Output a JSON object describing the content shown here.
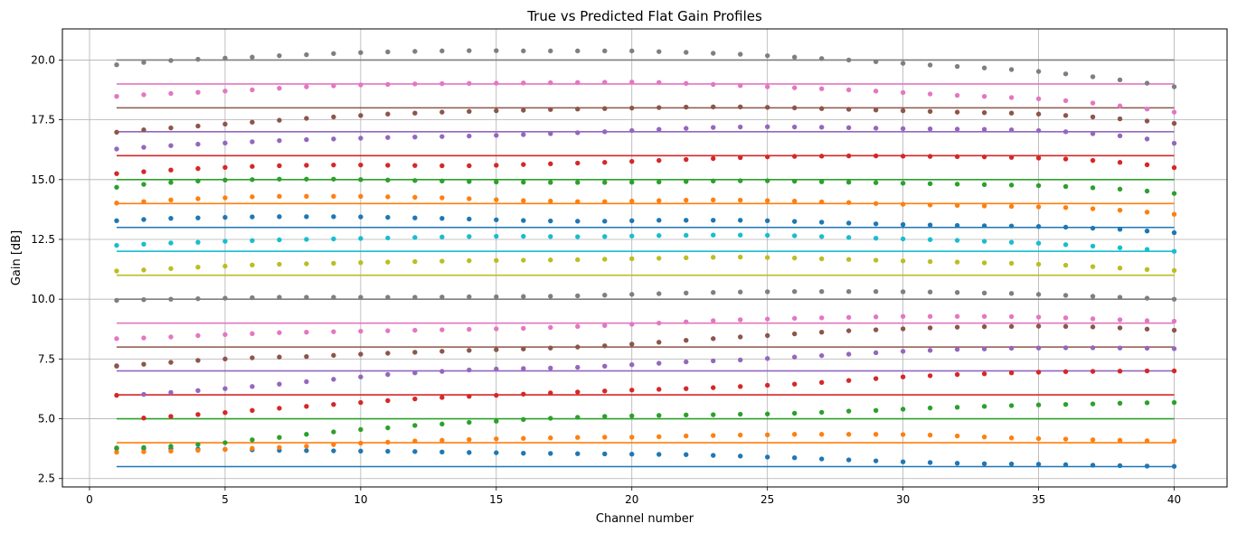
{
  "chart_data": {
    "type": "line",
    "title": "True vs Predicted Flat Gain Profiles",
    "xlabel": "Channel number",
    "ylabel": "Gain [dB]",
    "xlim": [
      -1,
      41.95
    ],
    "ylim": [
      2.15,
      21.3
    ],
    "grid": true,
    "xticks": [
      0,
      5,
      10,
      15,
      20,
      25,
      30,
      35,
      40
    ],
    "xtick_labels": [
      "0",
      "5",
      "10",
      "15",
      "20",
      "25",
      "30",
      "35",
      "40"
    ],
    "yticks": [
      2.5,
      5.0,
      7.5,
      10.0,
      12.5,
      15.0,
      17.5,
      20.0
    ],
    "ytick_labels": [
      "2.5",
      "5.0",
      "7.5",
      "10.0",
      "12.5",
      "15.0",
      "17.5",
      "20.0"
    ],
    "x_range": [
      1,
      40
    ],
    "channels": [
      1,
      2,
      3,
      4,
      5,
      6,
      7,
      8,
      9,
      10,
      11,
      12,
      13,
      14,
      15,
      16,
      17,
      18,
      19,
      20,
      21,
      22,
      23,
      24,
      25,
      26,
      27,
      28,
      29,
      30,
      31,
      32,
      33,
      34,
      35,
      36,
      37,
      38,
      39,
      40
    ],
    "lines": [
      {
        "y": 3,
        "color": "#1f77b4"
      },
      {
        "y": 4,
        "color": "#ff7f0e"
      },
      {
        "y": 5,
        "color": "#2ca02c"
      },
      {
        "y": 6,
        "color": "#d62728"
      },
      {
        "y": 7,
        "color": "#9467bd"
      },
      {
        "y": 8,
        "color": "#8c564b"
      },
      {
        "y": 9,
        "color": "#e377c2"
      },
      {
        "y": 10,
        "color": "#7f7f7f"
      },
      {
        "y": 11,
        "color": "#bcbd22"
      },
      {
        "y": 12,
        "color": "#17becf"
      },
      {
        "y": 13,
        "color": "#1f77b4"
      },
      {
        "y": 14,
        "color": "#ff7f0e"
      },
      {
        "y": 15,
        "color": "#2ca02c"
      },
      {
        "y": 16,
        "color": "#d62728"
      },
      {
        "y": 17,
        "color": "#9467bd"
      },
      {
        "y": 18,
        "color": "#8c564b"
      },
      {
        "y": 19,
        "color": "#e377c2"
      },
      {
        "y": 20,
        "color": "#7f7f7f"
      }
    ],
    "series": [
      {
        "color": "#1f77b4",
        "values": [
          3.75,
          3.75,
          3.75,
          3.73,
          3.72,
          3.7,
          3.68,
          3.67,
          3.66,
          3.65,
          3.64,
          3.63,
          3.61,
          3.59,
          3.58,
          3.56,
          3.55,
          3.54,
          3.53,
          3.52,
          3.51,
          3.5,
          3.47,
          3.44,
          3.4,
          3.37,
          3.32,
          3.28,
          3.24,
          3.2,
          3.17,
          3.14,
          3.12,
          3.11,
          3.1,
          3.08,
          3.06,
          3.04,
          3.02,
          3.01
        ]
      },
      {
        "color": "#ff7f0e",
        "values": [
          3.6,
          3.62,
          3.65,
          3.68,
          3.72,
          3.76,
          3.8,
          3.85,
          3.92,
          3.98,
          4.02,
          4.07,
          4.1,
          4.13,
          4.16,
          4.18,
          4.2,
          4.22,
          4.23,
          4.23,
          4.25,
          4.28,
          4.3,
          4.32,
          4.33,
          4.35,
          4.35,
          4.35,
          4.35,
          4.34,
          4.32,
          4.28,
          4.24,
          4.2,
          4.17,
          4.15,
          4.12,
          4.1,
          4.08,
          4.07
        ]
      },
      {
        "color": "#2ca02c",
        "values": [
          3.78,
          3.8,
          3.85,
          3.92,
          4.0,
          4.12,
          4.22,
          4.35,
          4.45,
          4.55,
          4.62,
          4.72,
          4.78,
          4.85,
          4.9,
          4.97,
          5.02,
          5.06,
          5.1,
          5.12,
          5.14,
          5.16,
          5.17,
          5.19,
          5.2,
          5.23,
          5.27,
          5.32,
          5.35,
          5.4,
          5.45,
          5.48,
          5.52,
          5.55,
          5.58,
          5.6,
          5.62,
          5.65,
          5.67,
          5.68
        ]
      },
      {
        "color": "#d62728",
        "values": [
          5.98,
          5.03,
          5.1,
          5.18,
          5.26,
          5.35,
          5.44,
          5.52,
          5.6,
          5.68,
          5.76,
          5.83,
          5.89,
          5.94,
          5.98,
          6.03,
          6.08,
          6.12,
          6.16,
          6.2,
          6.23,
          6.26,
          6.3,
          6.35,
          6.4,
          6.45,
          6.52,
          6.6,
          6.68,
          6.75,
          6.8,
          6.85,
          6.88,
          6.92,
          6.95,
          6.97,
          6.98,
          6.99,
          7.0,
          7.0
        ]
      },
      {
        "color": "#9467bd",
        "values": [
          7.22,
          6.02,
          6.1,
          6.18,
          6.26,
          6.35,
          6.45,
          6.55,
          6.65,
          6.75,
          6.85,
          6.92,
          6.98,
          7.04,
          7.08,
          7.1,
          7.12,
          7.15,
          7.2,
          7.26,
          7.32,
          7.38,
          7.42,
          7.46,
          7.52,
          7.58,
          7.64,
          7.7,
          7.76,
          7.82,
          7.86,
          7.9,
          7.92,
          7.95,
          7.96,
          7.97,
          7.97,
          7.96,
          7.95,
          7.93
        ]
      },
      {
        "color": "#8c564b",
        "values": [
          7.2,
          7.28,
          7.36,
          7.44,
          7.5,
          7.55,
          7.58,
          7.6,
          7.65,
          7.7,
          7.74,
          7.78,
          7.82,
          7.86,
          7.89,
          7.92,
          7.96,
          8.0,
          8.05,
          8.12,
          8.2,
          8.28,
          8.35,
          8.42,
          8.48,
          8.55,
          8.62,
          8.68,
          8.72,
          8.76,
          8.8,
          8.83,
          8.85,
          8.86,
          8.87,
          8.86,
          8.84,
          8.8,
          8.75,
          8.7
        ]
      },
      {
        "color": "#e377c2",
        "values": [
          8.35,
          8.38,
          8.42,
          8.48,
          8.52,
          8.56,
          8.6,
          8.62,
          8.64,
          8.66,
          8.68,
          8.7,
          8.72,
          8.74,
          8.76,
          8.78,
          8.82,
          8.86,
          8.9,
          8.95,
          9.0,
          9.05,
          9.1,
          9.14,
          9.17,
          9.2,
          9.22,
          9.24,
          9.26,
          9.28,
          9.28,
          9.28,
          9.28,
          9.27,
          9.25,
          9.22,
          9.18,
          9.14,
          9.1,
          9.08
        ]
      },
      {
        "color": "#7f7f7f",
        "values": [
          9.95,
          9.98,
          10.0,
          10.02,
          10.04,
          10.06,
          10.08,
          10.08,
          10.08,
          10.08,
          10.08,
          10.08,
          10.09,
          10.1,
          10.1,
          10.11,
          10.12,
          10.14,
          10.17,
          10.2,
          10.23,
          10.26,
          10.28,
          10.3,
          10.31,
          10.32,
          10.32,
          10.32,
          10.32,
          10.31,
          10.3,
          10.28,
          10.26,
          10.24,
          10.2,
          10.16,
          10.12,
          10.08,
          10.04,
          10.0
        ]
      },
      {
        "color": "#bcbd22",
        "values": [
          11.18,
          11.22,
          11.28,
          11.34,
          11.38,
          11.43,
          11.46,
          11.48,
          11.5,
          11.53,
          11.55,
          11.57,
          11.59,
          11.61,
          11.62,
          11.63,
          11.64,
          11.65,
          11.67,
          11.69,
          11.71,
          11.73,
          11.75,
          11.76,
          11.74,
          11.72,
          11.69,
          11.66,
          11.63,
          11.6,
          11.57,
          11.55,
          11.52,
          11.5,
          11.46,
          11.42,
          11.36,
          11.3,
          11.24,
          11.2
        ]
      },
      {
        "color": "#17becf",
        "values": [
          12.25,
          12.3,
          12.35,
          12.38,
          12.42,
          12.45,
          12.48,
          12.5,
          12.52,
          12.54,
          12.56,
          12.58,
          12.6,
          12.62,
          12.63,
          12.63,
          12.62,
          12.61,
          12.62,
          12.64,
          12.66,
          12.67,
          12.68,
          12.68,
          12.67,
          12.65,
          12.62,
          12.58,
          12.55,
          12.52,
          12.49,
          12.46,
          12.42,
          12.38,
          12.34,
          12.28,
          12.22,
          12.15,
          12.08,
          12.0
        ]
      },
      {
        "color": "#1f77b4",
        "values": [
          13.28,
          13.33,
          13.38,
          13.4,
          13.42,
          13.44,
          13.45,
          13.45,
          13.45,
          13.44,
          13.42,
          13.4,
          13.38,
          13.35,
          13.32,
          13.29,
          13.27,
          13.26,
          13.26,
          13.28,
          13.3,
          13.3,
          13.3,
          13.3,
          13.28,
          13.25,
          13.22,
          13.18,
          13.15,
          13.12,
          13.1,
          13.08,
          13.07,
          13.06,
          13.04,
          13.01,
          12.97,
          12.92,
          12.85,
          12.78
        ]
      },
      {
        "color": "#ff7f0e",
        "values": [
          14.02,
          14.08,
          14.15,
          14.2,
          14.24,
          14.28,
          14.3,
          14.3,
          14.3,
          14.3,
          14.28,
          14.26,
          14.24,
          14.2,
          14.16,
          14.12,
          14.1,
          14.08,
          14.08,
          14.1,
          14.12,
          14.14,
          14.15,
          14.14,
          14.12,
          14.1,
          14.07,
          14.04,
          14.0,
          13.97,
          13.94,
          13.92,
          13.9,
          13.88,
          13.86,
          13.83,
          13.78,
          13.72,
          13.64,
          13.55
        ]
      },
      {
        "color": "#2ca02c",
        "values": [
          14.68,
          14.8,
          14.88,
          14.94,
          14.98,
          15.0,
          15.02,
          15.02,
          15.02,
          15.0,
          14.98,
          14.96,
          14.94,
          14.92,
          14.9,
          14.89,
          14.88,
          14.88,
          14.88,
          14.89,
          14.9,
          14.92,
          14.94,
          14.95,
          14.95,
          14.93,
          14.91,
          14.89,
          14.87,
          14.85,
          14.83,
          14.81,
          14.79,
          14.77,
          14.75,
          14.71,
          14.66,
          14.6,
          14.52,
          14.42
        ]
      },
      {
        "color": "#d62728",
        "values": [
          15.25,
          15.33,
          15.4,
          15.46,
          15.51,
          15.55,
          15.58,
          15.6,
          15.61,
          15.61,
          15.6,
          15.59,
          15.58,
          15.58,
          15.6,
          15.63,
          15.66,
          15.69,
          15.72,
          15.76,
          15.8,
          15.84,
          15.88,
          15.92,
          15.95,
          15.97,
          15.98,
          15.99,
          15.99,
          15.98,
          15.97,
          15.96,
          15.95,
          15.93,
          15.9,
          15.86,
          15.8,
          15.72,
          15.62,
          15.5
        ]
      },
      {
        "color": "#9467bd",
        "values": [
          16.28,
          16.35,
          16.42,
          16.48,
          16.53,
          16.58,
          16.63,
          16.67,
          16.7,
          16.73,
          16.76,
          16.78,
          16.8,
          16.82,
          16.85,
          16.88,
          16.92,
          16.96,
          17.0,
          17.05,
          17.1,
          17.14,
          17.18,
          17.2,
          17.21,
          17.2,
          17.19,
          17.17,
          17.15,
          17.13,
          17.12,
          17.11,
          17.1,
          17.08,
          17.05,
          17.0,
          16.92,
          16.83,
          16.7,
          16.52
        ]
      },
      {
        "color": "#8c564b",
        "values": [
          16.98,
          17.08,
          17.16,
          17.24,
          17.32,
          17.4,
          17.48,
          17.56,
          17.62,
          17.68,
          17.74,
          17.78,
          17.82,
          17.85,
          17.88,
          17.9,
          17.93,
          17.95,
          17.97,
          17.99,
          18.01,
          18.03,
          18.04,
          18.04,
          18.02,
          18.0,
          17.97,
          17.94,
          17.91,
          17.88,
          17.85,
          17.82,
          17.8,
          17.78,
          17.74,
          17.68,
          17.62,
          17.54,
          17.45,
          17.35
        ]
      },
      {
        "color": "#e377c2",
        "values": [
          18.48,
          18.55,
          18.6,
          18.65,
          18.7,
          18.75,
          18.82,
          18.88,
          18.92,
          18.96,
          18.98,
          19.0,
          19.01,
          19.02,
          19.03,
          19.04,
          19.05,
          19.06,
          19.07,
          19.08,
          19.06,
          19.02,
          18.98,
          18.93,
          18.88,
          18.84,
          18.8,
          18.75,
          18.7,
          18.64,
          18.58,
          18.52,
          18.48,
          18.43,
          18.38,
          18.3,
          18.2,
          18.08,
          17.95,
          17.82
        ]
      },
      {
        "color": "#7f7f7f",
        "values": [
          19.8,
          19.9,
          19.98,
          20.03,
          20.08,
          20.12,
          20.18,
          20.22,
          20.27,
          20.31,
          20.34,
          20.36,
          20.38,
          20.39,
          20.39,
          20.38,
          20.38,
          20.38,
          20.38,
          20.38,
          20.35,
          20.32,
          20.28,
          20.24,
          20.18,
          20.12,
          20.06,
          20.0,
          19.93,
          19.86,
          19.79,
          19.73,
          19.67,
          19.6,
          19.52,
          19.42,
          19.3,
          19.17,
          19.03,
          18.88
        ]
      }
    ]
  }
}
